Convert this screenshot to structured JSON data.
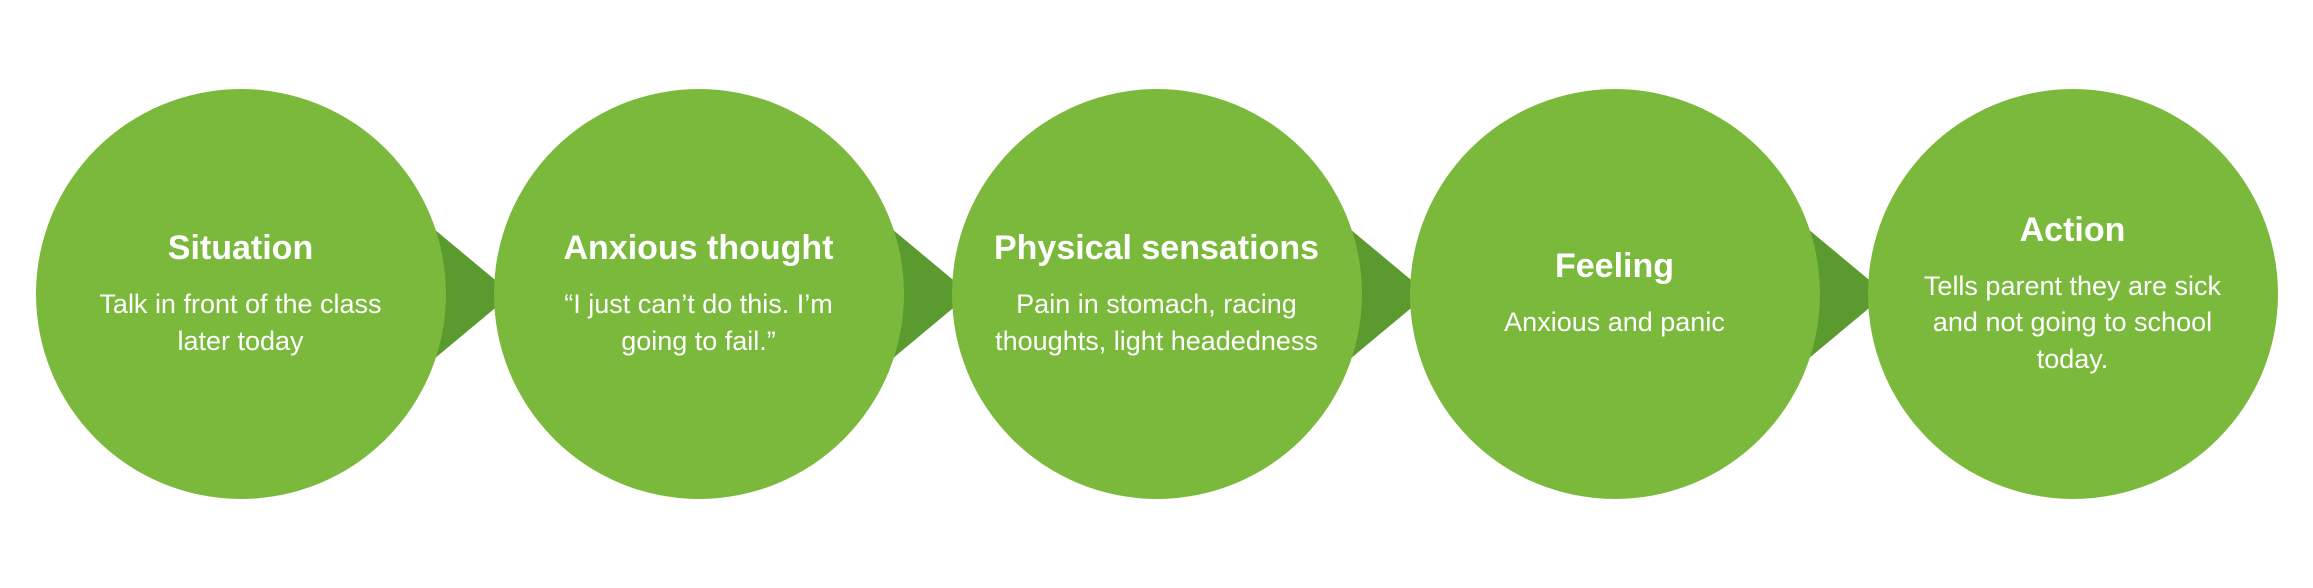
{
  "diagram": {
    "type": "flowchart",
    "background_color": "#ffffff",
    "circle_diameter": 410,
    "circle_fill": "#7ab93c",
    "arrow_fill": "#5b9a2f",
    "text_color": "#ffffff",
    "title_fontsize": 34,
    "body_fontsize": 27,
    "node_gap": 48,
    "arrow_width": 90,
    "arrow_half_height": 75,
    "nodes": [
      {
        "title": "Situation",
        "body": "Talk in front of the class later today"
      },
      {
        "title": "Anxious thought",
        "body": "“I just can’t do this. I’m going to fail.”"
      },
      {
        "title": "Physical sensations",
        "body": "Pain in stomach, racing thoughts, light headedness"
      },
      {
        "title": "Feeling",
        "body": "Anxious and panic"
      },
      {
        "title": "Action",
        "body": "Tells parent they are sick and not going to school today."
      }
    ]
  }
}
